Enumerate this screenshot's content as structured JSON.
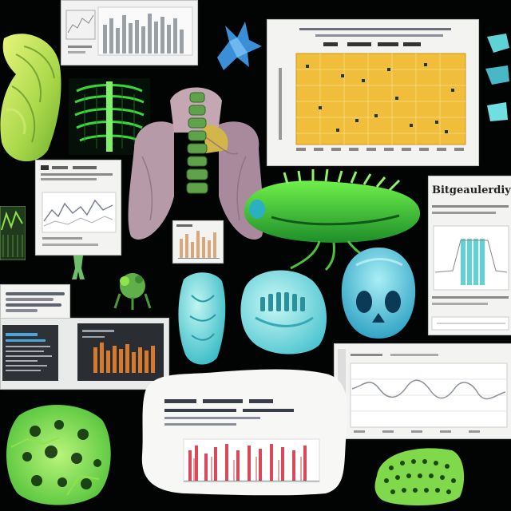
{
  "collage": {
    "background_color": "#020303",
    "panel_title": "Bitgeaulerdiyi"
  },
  "colors": {
    "lime": "#8fe34a",
    "neon_green": "#3bd63a",
    "aqua": "#5fd2d6",
    "mauve": "#b79aa8",
    "scatter_yellow": "#f0be3a",
    "bar_orange": "#d57a2e",
    "bar_red": "#d9495a",
    "bar_gray": "#8f939a"
  },
  "icons": [
    "lung-specimen-icon",
    "ribcage-scan-icon",
    "spine-torso-icon",
    "bacterium-icon",
    "tooth-icon",
    "skull-icon",
    "mesh-sponge-icon"
  ]
}
